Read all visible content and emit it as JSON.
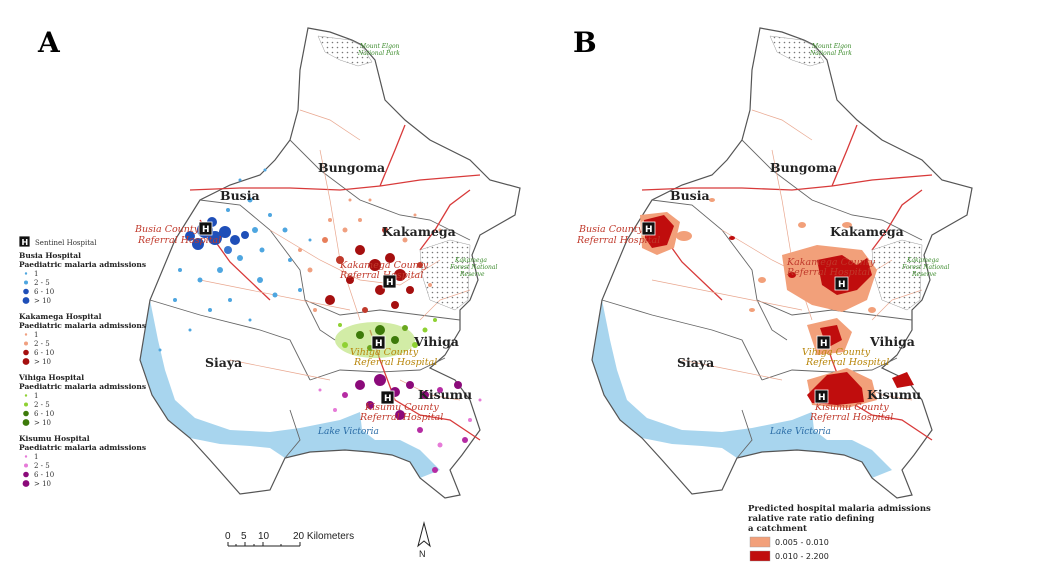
{
  "panels": [
    {
      "letter": "A"
    },
    {
      "letter": "B"
    }
  ],
  "counties": [
    "Bungoma",
    "Busia",
    "Kakamega",
    "Vihiga",
    "Siaya",
    "Kisumu"
  ],
  "hospital_labels": {
    "busia": [
      "Busia County",
      "Referral Hospital"
    ],
    "kakamega": [
      "Kakamega County",
      "Referral Hospital"
    ],
    "vihiga": [
      "Vihiga County",
      "Referral Hospital"
    ],
    "kisumu": [
      "Kisumu County",
      "Referral Hospital"
    ]
  },
  "features": {
    "elgon": [
      "Mount Elgon",
      "National Park"
    ],
    "kakamega_forest": [
      "Kakamega",
      "Forest National",
      "Reserve"
    ],
    "lake": "Lake Victoria"
  },
  "legend_a": {
    "sentinel_symbol": "H",
    "sentinel": "Sentinel Hospital",
    "groups": [
      {
        "title1": "Busia Hospital",
        "title2": "Paediatric malaria admissions",
        "color": "#1f4fb8",
        "light": "#4ea6e0",
        "items": [
          "1",
          "2 - 5",
          "6 - 10",
          "> 10"
        ]
      },
      {
        "title1": "Kakamega Hospital",
        "title2": "Paediatric malaria admissions",
        "color": "#a50f0f",
        "light": "#f0a080",
        "items": [
          "1",
          "2 - 5",
          "6 - 10",
          "> 10"
        ]
      },
      {
        "title1": "Vihiga Hospital",
        "title2": "Paediatric malaria admissions",
        "color": "#3d7a0a",
        "light": "#8fd133",
        "items": [
          "1",
          "2 - 5",
          "6 - 10",
          "> 10"
        ]
      },
      {
        "title1": "Kisumu Hospital",
        "title2": "Paediatric malaria admissions",
        "color": "#8b0a7a",
        "light": "#e67bd8",
        "items": [
          "1",
          "2 - 5",
          "6 - 10",
          "> 10"
        ]
      }
    ]
  },
  "legend_b": {
    "title": [
      "Predicted hospital malaria admissions",
      "ralative rate ratio defining",
      "a catchment"
    ],
    "items": [
      {
        "label": "0.005 - 0.010",
        "color": "#f2a07a"
      },
      {
        "label": "0.010 - 2.200",
        "color": "#c00d0d"
      }
    ]
  },
  "scale": {
    "ticks": [
      "0",
      "5",
      "10",
      "20 Kilometers"
    ]
  },
  "north": "N"
}
